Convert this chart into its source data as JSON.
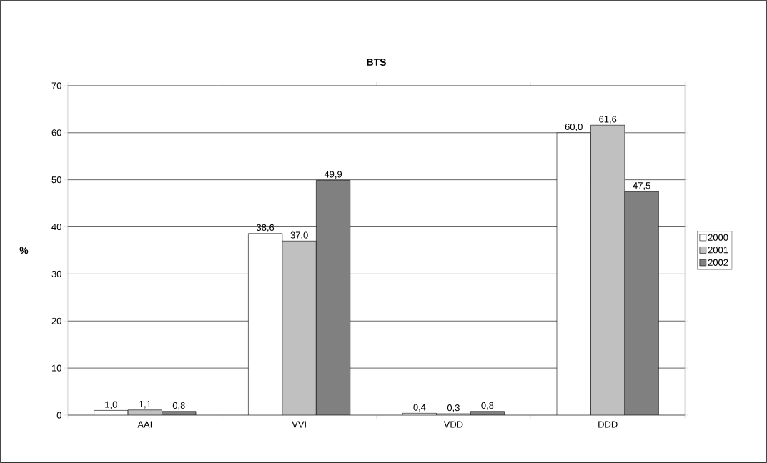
{
  "chart_data": {
    "type": "bar",
    "title": "BTS",
    "ylabel": "%",
    "categories": [
      "AAI",
      "VVI",
      "VDD",
      "DDD"
    ],
    "series": [
      {
        "name": "2000",
        "color": "#ffffff",
        "values": [
          1.0,
          38.6,
          0.4,
          60.0
        ],
        "value_labels": [
          "1,0",
          "38,6",
          "0,4",
          "60,0"
        ]
      },
      {
        "name": "2001",
        "color": "#c0c0c0",
        "values": [
          1.1,
          37.0,
          0.3,
          61.6
        ],
        "value_labels": [
          "1,1",
          "37,0",
          "0,3",
          "61,6"
        ]
      },
      {
        "name": "2002",
        "color": "#808080",
        "values": [
          0.8,
          49.9,
          0.8,
          47.5
        ],
        "value_labels": [
          "0,8",
          "49,9",
          "0,8",
          "47,5"
        ]
      }
    ],
    "ylim": [
      0,
      70
    ],
    "yticks": [
      0,
      10,
      20,
      30,
      40,
      50,
      60,
      70
    ],
    "grid": "y",
    "legend": "right"
  }
}
